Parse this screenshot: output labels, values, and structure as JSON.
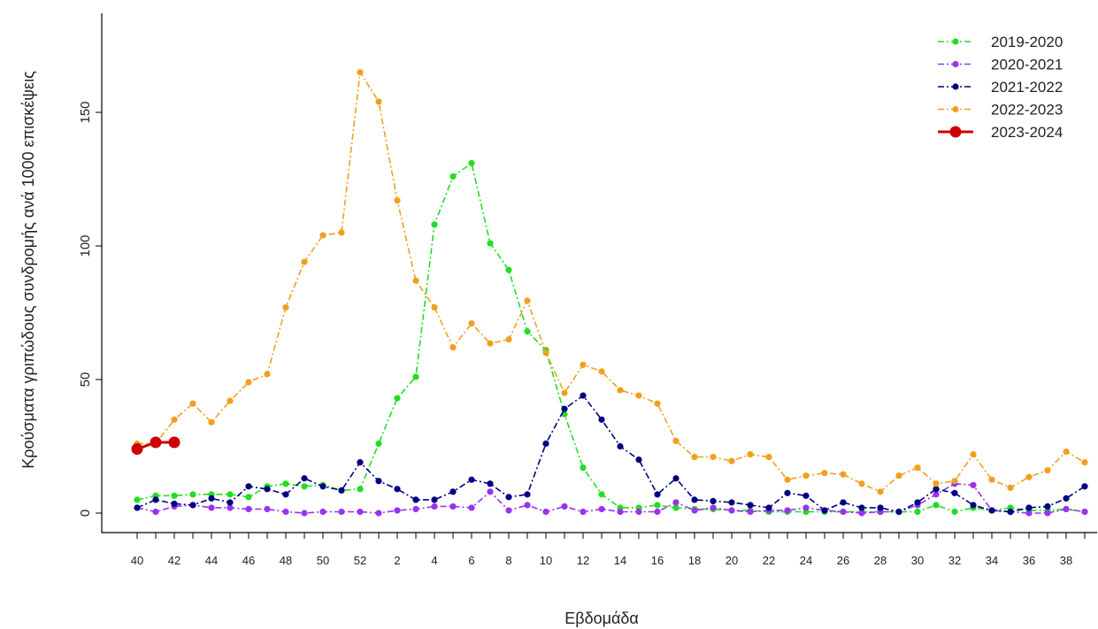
{
  "chart_data": {
    "type": "line",
    "xlabel": "Εβδομάδα",
    "ylabel": "Κρούσματα γριπώδους συνδρομής ανά 1000 επισκέψεις",
    "ylim": [
      0,
      175
    ],
    "yticks": [
      0,
      50,
      100,
      150
    ],
    "legend_position": "top-right",
    "grid": false,
    "x_tick_labels": [
      "40",
      "42",
      "44",
      "46",
      "48",
      "50",
      "52",
      "2",
      "4",
      "6",
      "8",
      "10",
      "12",
      "14",
      "16",
      "18",
      "20",
      "22",
      "24",
      "26",
      "28",
      "30",
      "32",
      "34",
      "36",
      "38"
    ],
    "weeks": [
      40,
      41,
      42,
      43,
      44,
      45,
      46,
      47,
      48,
      49,
      50,
      51,
      52,
      1,
      2,
      3,
      4,
      5,
      6,
      7,
      8,
      9,
      10,
      11,
      12,
      13,
      14,
      15,
      16,
      17,
      18,
      19,
      20,
      21,
      22,
      23,
      24,
      25,
      26,
      27,
      28,
      29,
      30,
      31,
      32,
      33,
      34,
      35,
      36,
      37,
      38,
      39
    ],
    "series": [
      {
        "name": "2019-2020",
        "color": "#22dd22",
        "values": [
          5,
          6.5,
          6.5,
          7,
          7,
          7,
          6,
          10,
          11,
          10,
          10.5,
          8.5,
          9,
          26,
          43,
          51,
          108,
          126,
          131,
          101,
          91,
          68,
          61,
          37,
          17,
          7,
          2,
          2,
          3,
          2,
          1.5,
          1.5,
          1,
          1,
          0.5,
          0.5,
          0.5,
          0.5,
          0.5,
          0.5,
          0.5,
          0.5,
          0.5,
          3,
          0.5,
          2,
          1,
          2,
          1,
          1,
          1.5,
          0.5
        ]
      },
      {
        "name": "2020-2021",
        "color": "#9933ee",
        "values": [
          2,
          0.5,
          2.5,
          3,
          2,
          2,
          1.5,
          1.5,
          0.5,
          0,
          0.5,
          0.5,
          0.5,
          0,
          1,
          1.5,
          2.5,
          2.5,
          2,
          8,
          1,
          3,
          0.5,
          2.5,
          0.5,
          1.5,
          0.5,
          0.5,
          0.5,
          4,
          1,
          2,
          1,
          0.5,
          1,
          1,
          2,
          1,
          0.5,
          0,
          0.5,
          0.5,
          3,
          7,
          11,
          10.5,
          1,
          0.5,
          0,
          0,
          1.5,
          0.5
        ]
      },
      {
        "name": "2021-2022",
        "color": "#000080",
        "values": [
          2,
          5,
          3.5,
          3,
          5.5,
          4,
          10,
          9,
          7,
          13,
          10,
          8.5,
          19,
          12,
          9,
          5,
          5,
          8,
          12.5,
          11,
          6,
          7,
          26,
          39,
          44,
          35,
          25,
          20,
          7,
          13,
          5,
          4.5,
          4,
          3,
          2,
          7.5,
          6.5,
          1,
          4,
          2,
          2,
          0.5,
          4,
          9,
          7.5,
          3,
          1,
          0.5,
          2,
          2.5,
          5.5,
          10
        ]
      },
      {
        "name": "2022-2023",
        "color": "#f0a020",
        "values": [
          26,
          26,
          35,
          41,
          34,
          42,
          49,
          52,
          77,
          94,
          104,
          105,
          165,
          154,
          117,
          87,
          77,
          62,
          71,
          63.5,
          65,
          79.5,
          60,
          45,
          55.5,
          53,
          46,
          44,
          41,
          27,
          21,
          21,
          19.5,
          22,
          21,
          12.5,
          14,
          15,
          14.5,
          11,
          8,
          14,
          17,
          11,
          12,
          22,
          12.5,
          9.5,
          13.5,
          16,
          23,
          19
        ]
      },
      {
        "name": "2023-2024",
        "color": "#cc0000",
        "values": [
          24,
          26.5,
          26.5
        ]
      }
    ]
  }
}
